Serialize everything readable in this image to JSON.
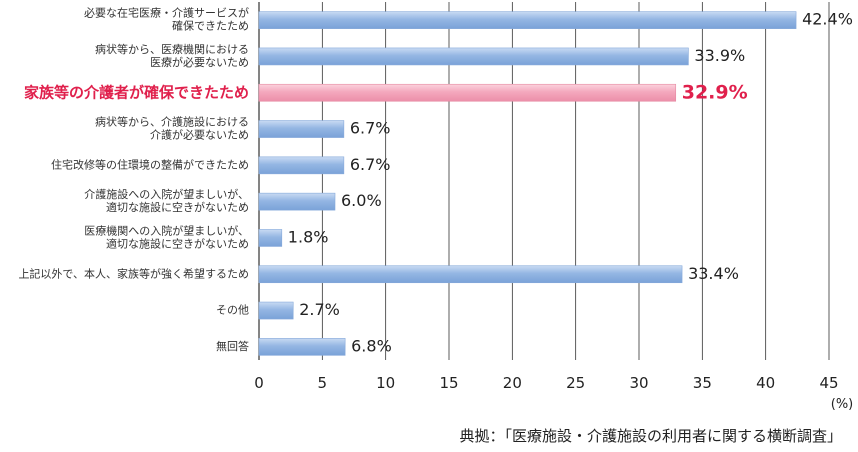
{
  "chart_data": {
    "type": "bar",
    "orientation": "horizontal",
    "categories": [
      [
        "必要な在宅医療・介護サービスが",
        "確保できたため"
      ],
      [
        "病状等から、医療機関における",
        "医療が必要ないため"
      ],
      [
        "家族等の介護者が確保できたため"
      ],
      [
        "病状等から、介護施設における",
        "介護が必要ないため"
      ],
      [
        "住宅改修等の住環境の整備ができたため"
      ],
      [
        "介護施設への入院が望ましいが、",
        "適切な施設に空きがないため"
      ],
      [
        "医療機関への入院が望ましいが、",
        "適切な施設に空きがないため"
      ],
      [
        "上記以外で、本人、家族等が強く希望するため"
      ],
      [
        "その他"
      ],
      [
        "無回答"
      ]
    ],
    "values": [
      42.4,
      33.9,
      32.9,
      6.7,
      6.7,
      6.0,
      1.8,
      33.4,
      2.7,
      6.8
    ],
    "value_labels": [
      "42.4%",
      "33.9%",
      "32.9%",
      "6.7%",
      "6.7%",
      "6.0%",
      "1.8%",
      "33.4%",
      "2.7%",
      "6.8%"
    ],
    "highlight_index": 2,
    "xlim": [
      0,
      45
    ],
    "xticks": [
      0,
      5,
      10,
      15,
      20,
      25,
      30,
      35,
      40,
      45
    ],
    "xunit": "(%)",
    "grid": true,
    "colors": {
      "bar": "#94b6e3",
      "bar_highlight": "#f4a8bd",
      "highlight_text": "#e0204c",
      "grid": "#333333"
    }
  },
  "source": "典拠：「医療施設・介護施設の利用者に関する横断調査」"
}
